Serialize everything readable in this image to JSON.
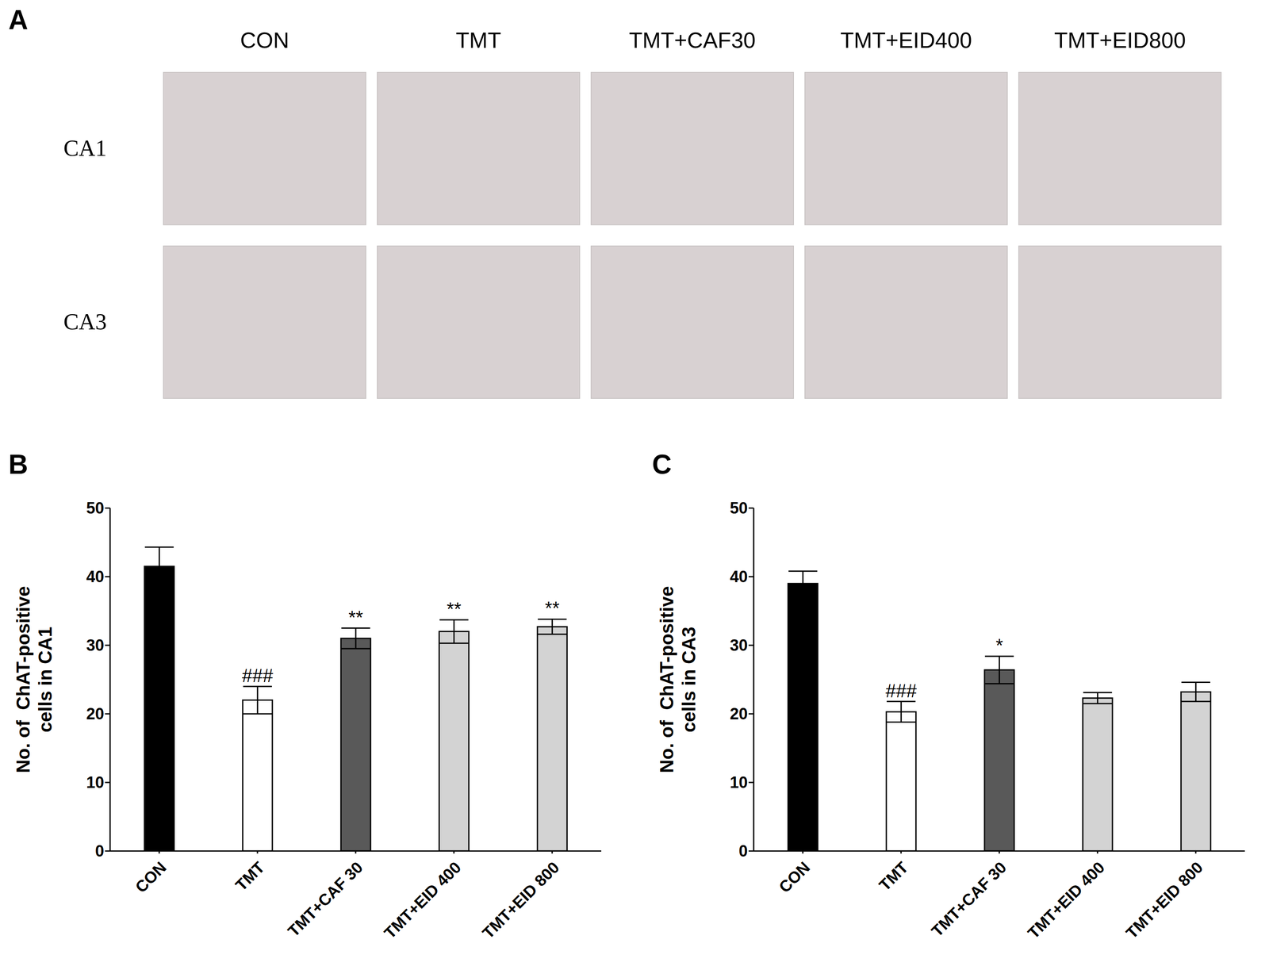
{
  "panel_a": {
    "letter": "A",
    "columns": [
      "CON",
      "TMT",
      "TMT+CAF30",
      "TMT+EID400",
      "TMT+EID800"
    ],
    "rows": [
      "CA1",
      "CA3"
    ]
  },
  "chart_data": [
    {
      "letter": "B",
      "type": "bar",
      "categories": [
        "CON",
        "TMT",
        "TMT+CAF 30",
        "TMT+EID 400",
        "TMT+EID 800"
      ],
      "values": [
        41.5,
        22,
        31,
        32,
        32.7
      ],
      "errors": [
        2.8,
        2,
        1.5,
        1.7,
        1.1
      ],
      "annotations": [
        null,
        "###",
        "**",
        "**",
        "**"
      ],
      "colors": [
        "#000000",
        "#ffffff",
        "#595959",
        "#d3d3d3",
        "#d3d3d3"
      ],
      "ylim": [
        0,
        50
      ],
      "yticks": [
        0,
        10,
        20,
        30,
        40,
        50
      ],
      "y_label": [
        "No. of  ChAT-positive",
        "cells in CA1"
      ]
    },
    {
      "letter": "C",
      "type": "bar",
      "categories": [
        "CON",
        "TMT",
        "TMT+CAF 30",
        "TMT+EID 400",
        "TMT+EID 800"
      ],
      "values": [
        39,
        20.3,
        26.4,
        22.3,
        23.2
      ],
      "errors": [
        1.8,
        1.5,
        2,
        0.8,
        1.4
      ],
      "annotations": [
        null,
        "###",
        "*",
        null,
        null
      ],
      "colors": [
        "#000000",
        "#ffffff",
        "#595959",
        "#d3d3d3",
        "#d3d3d3"
      ],
      "ylim": [
        0,
        50
      ],
      "yticks": [
        0,
        10,
        20,
        30,
        40,
        50
      ],
      "y_label": [
        "No. of  ChAT-positive",
        "cells in CA3"
      ]
    }
  ]
}
